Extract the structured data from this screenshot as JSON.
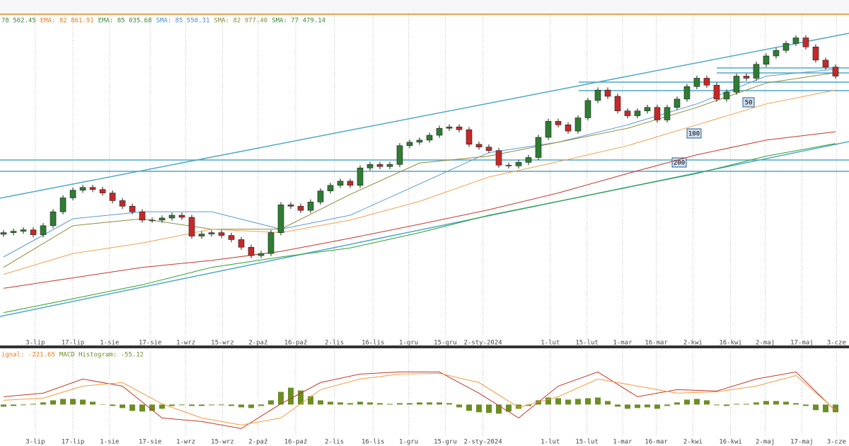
{
  "chart_data": {
    "type": "candlestick",
    "header": [
      {
        "text": "78 562.45",
        "color": "#3a8a3a"
      },
      {
        "text": "EMA: 82 861.91",
        "color": "#e07b22"
      },
      {
        "text": "EMA: 85 035.68",
        "color": "#3a8a3a"
      },
      {
        "text": "SMA: 85 550.31",
        "color": "#4a8fc8"
      },
      {
        "text": "SMA: 82 977.40",
        "color": "#8b8b3a"
      },
      {
        "text": "SMA: 77 479.14",
        "color": "#3a8a3a"
      }
    ],
    "annotations": [
      "50",
      "100",
      "200"
    ],
    "xlim": [
      -0.36,
      85.36
    ],
    "ylim": [
      46700,
      95000
    ],
    "xticks": [
      {
        "value": 3.2,
        "label": "3-lip"
      },
      {
        "value": 7,
        "label": "17-lip"
      },
      {
        "value": 10.7,
        "label": "1-sie"
      },
      {
        "value": 14.8,
        "label": "17-sie"
      },
      {
        "value": 18.4,
        "label": "1-wrz"
      },
      {
        "value": 22.1,
        "label": "15-wrz"
      },
      {
        "value": 25.7,
        "label": "2-paź"
      },
      {
        "value": 29.5,
        "label": "16-paź"
      },
      {
        "value": 33.4,
        "label": "2-lis"
      },
      {
        "value": 37.3,
        "label": "16-lis"
      },
      {
        "value": 40.9,
        "label": "1-gru"
      },
      {
        "value": 44.6,
        "label": "15-gru"
      },
      {
        "value": 48.4,
        "label": "2-sty-2024"
      },
      {
        "value": 55.2,
        "label": "1-lut"
      },
      {
        "value": 58.9,
        "label": "15-lut"
      },
      {
        "value": 62.5,
        "label": "1-mar"
      },
      {
        "value": 65.9,
        "label": "16-mar"
      },
      {
        "value": 69.6,
        "label": "2-kwi"
      },
      {
        "value": 73.4,
        "label": "16-kwi"
      },
      {
        "value": 76.9,
        "label": "2-maj"
      },
      {
        "value": 80.6,
        "label": "17-maj"
      },
      {
        "value": 84.1,
        "label": "3-cze"
      }
    ],
    "candles": {
      "up_color": "#2e7d32",
      "down_color": "#c62828",
      "open": [
        62200,
        62450,
        62660,
        62870,
        62135,
        63500,
        65600,
        67700,
        68855,
        69275,
        68960,
        68435,
        67280,
        66440,
        65600,
        64340,
        64340,
        64655,
        65075,
        64760,
        61925,
        62240,
        62450,
        62030,
        61400,
        60245,
        58985,
        59300,
        62450,
        66650,
        66440,
        65810,
        67070,
        68750,
        69590,
        70220,
        69590,
        72215,
        72740,
        72425,
        72740,
        75575,
        76100,
        76415,
        77150,
        78200,
        78410,
        77990,
        75785,
        75365,
        74840,
        72635,
        72530,
        73055,
        73790,
        76835,
        79250,
        78725,
        77780,
        79775,
        82400,
        83975,
        83030,
        80825,
        80090,
        80825,
        81350,
        79460,
        81350,
        82610,
        84500,
        85760,
        84710,
        82610,
        83660,
        86075,
        85760,
        87860,
        89120,
        89960,
        91010,
        91850,
        90485,
        88490,
        87440
      ],
      "high": [
        62850,
        63060,
        63270,
        63270,
        63900,
        66000,
        68100,
        69255,
        69675,
        69675,
        69360,
        68835,
        67680,
        66840,
        66000,
        64740,
        65055,
        65475,
        65475,
        65160,
        62640,
        62850,
        62850,
        62430,
        61800,
        60645,
        59700,
        62850,
        67050,
        67050,
        66840,
        67470,
        69150,
        69990,
        70620,
        70620,
        72615,
        73140,
        73140,
        73140,
        75975,
        76500,
        76815,
        77550,
        78600,
        78810,
        78810,
        78390,
        76185,
        75765,
        75240,
        73035,
        73455,
        74190,
        77235,
        79650,
        79650,
        79125,
        80175,
        82800,
        84375,
        84375,
        83430,
        81225,
        81225,
        81750,
        81750,
        81750,
        83010,
        84900,
        86160,
        86160,
        85110,
        84060,
        86475,
        86475,
        88260,
        89520,
        90360,
        91410,
        92250,
        92250,
        90885,
        88890,
        87840
      ],
      "low": [
        61800,
        62050,
        62260,
        61735,
        61735,
        63100,
        65200,
        67300,
        68455,
        68560,
        68035,
        66880,
        66040,
        65200,
        63940,
        63940,
        63940,
        64255,
        64360,
        61525,
        61525,
        61840,
        61630,
        61000,
        59845,
        58585,
        58585,
        58900,
        62050,
        66040,
        65410,
        65410,
        66670,
        68350,
        69190,
        69190,
        69190,
        71815,
        72025,
        72025,
        72340,
        75175,
        75700,
        76015,
        76750,
        77800,
        77590,
        75385,
        74965,
        74440,
        72235,
        72130,
        72130,
        72655,
        73390,
        76435,
        78325,
        77380,
        77380,
        79375,
        82000,
        82630,
        80425,
        79690,
        79690,
        80425,
        79060,
        79060,
        80950,
        82210,
        84100,
        84310,
        82210,
        82210,
        83260,
        85360,
        85360,
        87460,
        88720,
        89560,
        90610,
        90085,
        88090,
        87040,
        85675
      ],
      "close": [
        62450,
        62660,
        62870,
        62135,
        63500,
        65600,
        67700,
        68855,
        69275,
        68960,
        68435,
        67280,
        66440,
        65600,
        64340,
        64340,
        64655,
        65075,
        64760,
        61925,
        62240,
        62450,
        62030,
        61400,
        60245,
        58985,
        59300,
        62450,
        66650,
        66440,
        65810,
        67070,
        68750,
        69590,
        70220,
        69590,
        72215,
        72740,
        72425,
        72740,
        75575,
        76100,
        76415,
        77150,
        78200,
        78410,
        77990,
        75785,
        75365,
        74840,
        72635,
        72530,
        73055,
        73790,
        76835,
        79250,
        78725,
        77780,
        79775,
        82400,
        83975,
        83030,
        80825,
        80090,
        80825,
        81350,
        79460,
        81350,
        82610,
        84500,
        85760,
        84710,
        82610,
        83660,
        86075,
        85760,
        87860,
        89120,
        89960,
        91010,
        91850,
        90485,
        88490,
        87440,
        86075
      ]
    },
    "lines": [
      {
        "color": "#5b9bd5",
        "x": [
          0,
          7,
          14,
          21,
          28,
          35,
          42,
          49,
          56,
          63,
          70,
          77,
          84
        ],
        "values": [
          58775,
          64550,
          65600,
          65600,
          62975,
          65075,
          69800,
          74525,
          76100,
          78725,
          81875,
          86075,
          87125
        ]
      },
      {
        "color": "#8b8b3a",
        "x": [
          0,
          7,
          14,
          21,
          28,
          35,
          42,
          49,
          56,
          63,
          70,
          77,
          84
        ],
        "values": [
          57200,
          63500,
          64550,
          62975,
          62975,
          68225,
          72950,
          74000,
          76100,
          78200,
          81350,
          85025,
          86600
        ]
      },
      {
        "color": "#f0a050",
        "x": [
          0,
          7,
          14,
          21,
          28,
          35,
          42,
          49,
          56,
          63,
          70,
          77,
          84
        ],
        "values": [
          56150,
          59300,
          60875,
          62975,
          62450,
          64340,
          67175,
          70850,
          73160,
          75575,
          78725,
          81875,
          83975
        ]
      },
      {
        "color": "#c0392b",
        "x": [
          0,
          7,
          14,
          21,
          28,
          35,
          42,
          49,
          56,
          63,
          70,
          77,
          84
        ],
        "values": [
          54050,
          55625,
          57200,
          58250,
          59615,
          61610,
          63710,
          65915,
          68435,
          71375,
          74210,
          76415,
          77675
        ]
      },
      {
        "color": "#2ca02c",
        "x": [
          0,
          7,
          14,
          21,
          28,
          35,
          42,
          49,
          56,
          63,
          70,
          77,
          84
        ],
        "values": [
          50375,
          52475,
          54575,
          57200,
          58775,
          60140,
          62450,
          65075,
          67175,
          69275,
          71375,
          74000,
          75890
        ]
      }
    ],
    "macd": {
      "header": [
        {
          "text": "ignal: -221.65",
          "color": "#e07b22"
        },
        {
          "text": "MACD Histogram: -55.12",
          "color": "#6b8e23"
        }
      ],
      "ylim": [
        -1500,
        2000
      ],
      "y2lim": [
        -270,
        360
      ],
      "series": [
        {
          "color": "#c0392b",
          "x": [
            0,
            4,
            8,
            12,
            16,
            20,
            24,
            28,
            32,
            36,
            40,
            44,
            48,
            52,
            56,
            60,
            64,
            68,
            72,
            76,
            80,
            84
          ],
          "values": [
            308,
            448,
            1008,
            728,
            -532,
            -672,
            -952,
            28,
            868,
            1204,
            1288,
            1288,
            448,
            -532,
            728,
            1288,
            308,
            588,
            532,
            1008,
            1288,
            -252
          ]
        },
        {
          "color": "#f39c3d",
          "x": [
            0,
            4,
            8,
            12,
            16,
            20,
            24,
            28,
            32,
            36,
            40,
            44,
            48,
            52,
            56,
            60,
            64,
            68,
            72,
            76,
            80,
            84
          ],
          "values": [
            168,
            252,
            728,
            868,
            28,
            -532,
            -812,
            -532,
            588,
            1008,
            1204,
            1232,
            868,
            -112,
            308,
            1008,
            728,
            448,
            504,
            728,
            1148,
            -221.65
          ]
        }
      ],
      "histogram": {
        "axis": "y2",
        "color": "#6b8e23",
        "values": [
          -15,
          -10,
          -5,
          5,
          15,
          30,
          40,
          40,
          35,
          20,
          0,
          -10,
          -25,
          -45,
          -50,
          -45,
          -30,
          -10,
          -5,
          -10,
          -10,
          -5,
          -5,
          -10,
          -20,
          -25,
          -10,
          30,
          90,
          120,
          100,
          60,
          30,
          20,
          15,
          10,
          20,
          15,
          10,
          5,
          10,
          10,
          15,
          15,
          15,
          10,
          -20,
          -45,
          -55,
          -60,
          -65,
          -50,
          -30,
          -10,
          30,
          50,
          45,
          35,
          40,
          45,
          50,
          25,
          -15,
          -30,
          -25,
          -20,
          -30,
          -10,
          15,
          35,
          40,
          30,
          -5,
          -10,
          5,
          5,
          15,
          25,
          25,
          20,
          10,
          -10,
          -40,
          -55,
          -55.12
        ]
      }
    }
  }
}
